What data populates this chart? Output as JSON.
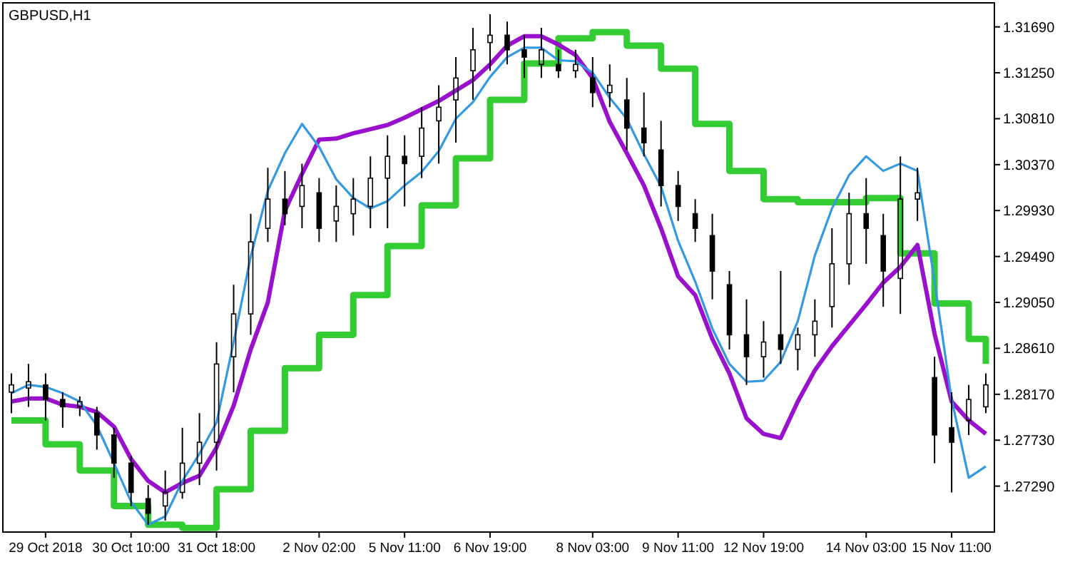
{
  "chart_data": {
    "type": "candlestick",
    "title": "GBPUSD,H1",
    "categories": [
      null,
      null,
      "29 Oct 2018",
      null,
      null,
      null,
      null,
      "30 Oct 10:00",
      null,
      null,
      null,
      null,
      "31 Oct 18:00",
      null,
      null,
      null,
      null,
      null,
      "2 Nov 02:00",
      null,
      null,
      null,
      null,
      "5 Nov 11:00",
      null,
      null,
      null,
      null,
      "6 Nov 19:00",
      null,
      null,
      null,
      null,
      null,
      "8 Nov 03:00",
      null,
      null,
      null,
      null,
      "9 Nov 11:00",
      null,
      null,
      null,
      null,
      "12 Nov 19:00",
      null,
      null,
      null,
      null,
      null,
      "14 Nov 03:00",
      null,
      null,
      null,
      null,
      "15 Nov 11:00",
      null,
      null
    ],
    "ohlc": [
      [
        1.2819,
        1.2837,
        1.2799,
        1.2826
      ],
      [
        1.2823,
        1.2846,
        1.2805,
        1.2829
      ],
      [
        1.2826,
        1.2837,
        1.2792,
        1.2812
      ],
      [
        1.2812,
        1.2819,
        1.2785,
        1.2805
      ],
      [
        1.2805,
        1.2815,
        1.2796,
        1.281
      ],
      [
        1.2799,
        1.2805,
        1.2764,
        1.2778
      ],
      [
        1.2778,
        1.2785,
        1.2737,
        1.2751
      ],
      [
        1.2751,
        1.2758,
        1.271,
        1.2723
      ],
      [
        1.2717,
        1.273,
        1.2692,
        1.2703
      ],
      [
        1.271,
        1.2744,
        1.2696,
        1.2723
      ],
      [
        1.2723,
        1.2785,
        1.2717,
        1.2751
      ],
      [
        1.2751,
        1.2799,
        1.273,
        1.2771
      ],
      [
        1.2771,
        1.2867,
        1.2744,
        1.2846
      ],
      [
        1.2853,
        1.2922,
        1.2819,
        1.2894
      ],
      [
        1.2894,
        1.299,
        1.2874,
        1.2963
      ],
      [
        1.2976,
        1.3034,
        1.2963,
        1.3004
      ],
      [
        1.3004,
        1.3031,
        1.2979,
        1.299
      ],
      [
        1.2997,
        1.3038,
        1.2976,
        1.3017
      ],
      [
        1.301,
        1.3024,
        1.2963,
        1.2976
      ],
      [
        1.2983,
        1.3017,
        1.2963,
        1.2997
      ],
      [
        1.299,
        1.3024,
        1.2969,
        1.3004
      ],
      [
        1.2997,
        1.3045,
        1.2976,
        1.3024
      ],
      [
        1.3024,
        1.3065,
        1.2976,
        1.3045
      ],
      [
        1.3045,
        1.3065,
        1.2997,
        1.3038
      ],
      [
        1.3045,
        1.3092,
        1.3024,
        1.3072
      ],
      [
        1.3079,
        1.3113,
        1.3038,
        1.3092
      ],
      [
        1.3099,
        1.314,
        1.3058,
        1.312
      ],
      [
        1.3127,
        1.3168,
        1.3099,
        1.3147
      ],
      [
        1.3154,
        1.3181,
        1.3127,
        1.3161
      ],
      [
        1.3161,
        1.3174,
        1.3133,
        1.3147
      ],
      [
        1.3147,
        1.3161,
        1.312,
        1.314
      ],
      [
        1.3133,
        1.3168,
        1.312,
        1.3147
      ],
      [
        1.3133,
        1.3147,
        1.312,
        1.3127
      ],
      [
        1.3127,
        1.3147,
        1.312,
        1.3133
      ],
      [
        1.312,
        1.314,
        1.3092,
        1.3106
      ],
      [
        1.3106,
        1.3133,
        1.3092,
        1.3113
      ],
      [
        1.3099,
        1.312,
        1.3051,
        1.3072
      ],
      [
        1.3072,
        1.3106,
        1.3045,
        1.3058
      ],
      [
        1.3051,
        1.3079,
        1.2997,
        1.3017
      ],
      [
        1.3017,
        1.3031,
        1.2983,
        1.2997
      ],
      [
        1.299,
        1.3004,
        1.2963,
        1.2976
      ],
      [
        1.2969,
        1.299,
        1.2908,
        1.2935
      ],
      [
        1.2922,
        1.2935,
        1.286,
        1.2874
      ],
      [
        1.2874,
        1.2908,
        1.2826,
        1.2853
      ],
      [
        1.2853,
        1.2887,
        1.2833,
        1.2867
      ],
      [
        1.2874,
        1.2935,
        1.2846,
        1.286
      ],
      [
        1.286,
        1.2881,
        1.284,
        1.2874
      ],
      [
        1.2874,
        1.2908,
        1.2853,
        1.2887
      ],
      [
        1.2901,
        1.2976,
        1.2881,
        1.2942
      ],
      [
        1.2942,
        1.301,
        1.2922,
        1.299
      ],
      [
        1.299,
        1.3024,
        1.2942,
        1.2976
      ],
      [
        1.2969,
        1.299,
        1.2901,
        1.2935
      ],
      [
        1.2928,
        1.3045,
        1.2894,
        1.3004
      ],
      [
        1.3004,
        1.3034,
        1.2983,
        1.301
      ],
      [
        1.2833,
        1.2853,
        1.2751,
        1.2778
      ],
      [
        1.2785,
        1.2819,
        1.2723,
        1.2771
      ],
      [
        1.2792,
        1.2826,
        1.2778,
        1.2812
      ],
      [
        1.2805,
        1.2837,
        1.2799,
        1.2826
      ]
    ],
    "series": [
      {
        "type": "step",
        "color": "#33cc33",
        "values": [
          1.2792,
          1.2792,
          1.2769,
          1.2769,
          1.2744,
          1.2744,
          1.271,
          1.271,
          1.2692,
          1.2692,
          1.2689,
          1.2689,
          1.2726,
          1.2726,
          1.2782,
          1.2782,
          1.2842,
          1.2842,
          1.2874,
          1.2874,
          1.2912,
          1.2912,
          1.2959,
          1.2959,
          1.2998,
          1.2998,
          1.3043,
          1.3043,
          1.3099,
          1.3099,
          1.3134,
          1.3134,
          1.3158,
          1.3158,
          1.3164,
          1.3164,
          1.3151,
          1.3151,
          1.3129,
          1.3129,
          1.3076,
          1.3076,
          1.3031,
          1.3031,
          1.3004,
          1.3004,
          1.3001,
          1.3001,
          1.3001,
          1.3001,
          1.3005,
          1.3005,
          1.2952,
          1.2952,
          1.2904,
          1.2904,
          1.287,
          1.2846
        ]
      },
      {
        "type": "line",
        "color": "#9911cc",
        "values": [
          1.281,
          1.2813,
          1.2813,
          1.2807,
          1.2805,
          1.28,
          1.2786,
          1.2755,
          1.2734,
          1.2723,
          1.2732,
          1.2739,
          1.2766,
          1.2806,
          1.286,
          1.2905,
          1.2993,
          1.3028,
          1.3061,
          1.3062,
          1.3067,
          1.3071,
          1.3075,
          1.3082,
          1.309,
          1.3098,
          1.3108,
          1.3118,
          1.3133,
          1.3151,
          1.316,
          1.316,
          1.3152,
          1.3142,
          1.312,
          1.3078,
          1.3048,
          1.3017,
          1.2976,
          1.293,
          1.2912,
          1.287,
          1.2837,
          1.2794,
          1.2779,
          1.2775,
          1.281,
          1.284,
          1.2863,
          1.2883,
          1.2903,
          1.2924,
          1.2939,
          1.296,
          1.2875,
          1.281,
          1.2792,
          1.2779
        ]
      },
      {
        "type": "line",
        "color": "#3399e0",
        "values": [
          1.2818,
          1.2826,
          1.2824,
          1.2818,
          1.281,
          1.2787,
          1.2751,
          1.2714,
          1.2692,
          1.27,
          1.2734,
          1.276,
          1.279,
          1.2867,
          1.2949,
          1.3012,
          1.3048,
          1.3076,
          1.3054,
          1.3023,
          1.3005,
          1.2995,
          1.3002,
          1.3017,
          1.303,
          1.305,
          1.3081,
          1.3097,
          1.3121,
          1.314,
          1.3149,
          1.3149,
          1.3137,
          1.3136,
          1.3125,
          1.3101,
          1.3081,
          1.3047,
          1.3016,
          1.2964,
          1.2925,
          1.288,
          1.2846,
          1.2829,
          1.283,
          1.2848,
          1.2887,
          1.295,
          1.2995,
          1.3027,
          1.3045,
          1.3031,
          1.3038,
          1.3031,
          1.2925,
          1.2812,
          1.2737,
          1.2748
        ]
      }
    ],
    "ylim": [
      1.2685,
      1.3192
    ],
    "yticks": [
      {
        "value": 1.3169,
        "label": "1.31690"
      },
      {
        "value": 1.3125,
        "label": "1.31250"
      },
      {
        "value": 1.3081,
        "label": "1.30810"
      },
      {
        "value": 1.3037,
        "label": "1.30370"
      },
      {
        "value": 1.2993,
        "label": "1.29930"
      },
      {
        "value": 1.2949,
        "label": "1.29490"
      },
      {
        "value": 1.2905,
        "label": "1.29050"
      },
      {
        "value": 1.2861,
        "label": "1.28610"
      },
      {
        "value": 1.2817,
        "label": "1.28170"
      },
      {
        "value": 1.2773,
        "label": "1.27730"
      },
      {
        "value": 1.2729,
        "label": "1.27290"
      }
    ],
    "grid": false,
    "line_style": "solid",
    "marker": "none"
  }
}
